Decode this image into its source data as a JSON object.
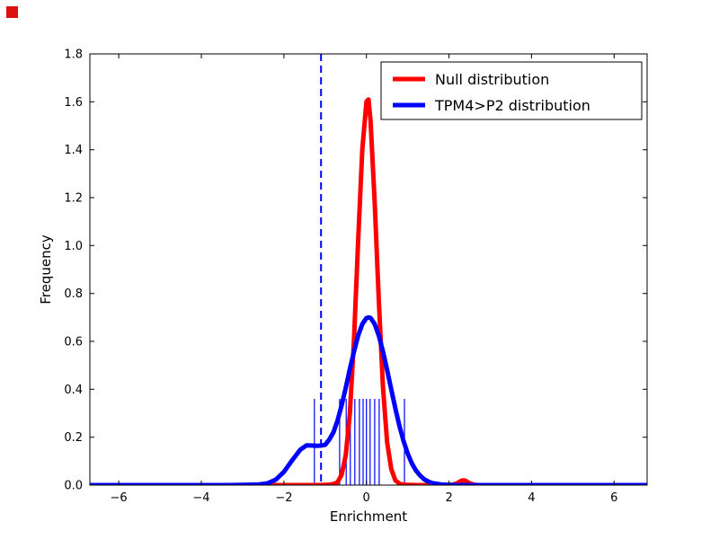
{
  "figure": {
    "background": "#ffffff",
    "corner_marker_color": "#dd1111"
  },
  "chart_data": {
    "type": "line",
    "title": "",
    "xlabel": "Enrichment",
    "ylabel": "Frequency",
    "xlim": [
      -6.7,
      6.8
    ],
    "ylim": [
      0.0,
      1.8
    ],
    "grid": false,
    "xticks": [
      -6,
      -4,
      -2,
      0,
      2,
      4,
      6
    ],
    "xtick_labels": [
      "−6",
      "−4",
      "−2",
      "0",
      "2",
      "4",
      "6"
    ],
    "yticks": [
      0.0,
      0.2,
      0.4,
      0.6,
      0.8,
      1.0,
      1.2,
      1.4,
      1.6,
      1.8
    ],
    "ytick_labels": [
      "0.0",
      "0.2",
      "0.4",
      "0.6",
      "0.8",
      "1.0",
      "1.2",
      "1.4",
      "1.6",
      "1.8"
    ],
    "legend": {
      "position": "upper right",
      "border_color": "#000000",
      "background": "#ffffff"
    },
    "series": [
      {
        "name": "Null distribution",
        "color": "#ff0000",
        "width": 5,
        "points": [
          [
            -6.7,
            0
          ],
          [
            -3.0,
            0
          ],
          [
            -2.0,
            0
          ],
          [
            -1.2,
            0
          ],
          [
            -1.0,
            0.001
          ],
          [
            -0.9,
            0.002
          ],
          [
            -0.8,
            0.004
          ],
          [
            -0.7,
            0.012
          ],
          [
            -0.6,
            0.043
          ],
          [
            -0.5,
            0.125
          ],
          [
            -0.4,
            0.3
          ],
          [
            -0.3,
            0.61
          ],
          [
            -0.2,
            1.02
          ],
          [
            -0.1,
            1.4
          ],
          [
            0.0,
            1.6
          ],
          [
            0.05,
            1.61
          ],
          [
            0.1,
            1.52
          ],
          [
            0.2,
            1.18
          ],
          [
            0.3,
            0.77
          ],
          [
            0.4,
            0.41
          ],
          [
            0.5,
            0.18
          ],
          [
            0.6,
            0.067
          ],
          [
            0.7,
            0.02
          ],
          [
            0.8,
            0.006
          ],
          [
            0.9,
            0.002
          ],
          [
            1.0,
            0.001
          ],
          [
            1.2,
            0
          ],
          [
            2.0,
            0
          ],
          [
            2.1,
            0.002
          ],
          [
            2.2,
            0.008
          ],
          [
            2.3,
            0.018
          ],
          [
            2.35,
            0.02
          ],
          [
            2.4,
            0.018
          ],
          [
            2.5,
            0.008
          ],
          [
            2.6,
            0.002
          ],
          [
            2.7,
            0
          ],
          [
            6.8,
            0
          ]
        ]
      },
      {
        "name": "TPM4>P2 distribution",
        "color": "#0000ff",
        "width": 5,
        "points": [
          [
            -6.7,
            0
          ],
          [
            -3.4,
            0
          ],
          [
            -3.0,
            0.001
          ],
          [
            -2.8,
            0.002
          ],
          [
            -2.6,
            0.003
          ],
          [
            -2.4,
            0.007
          ],
          [
            -2.2,
            0.022
          ],
          [
            -2.0,
            0.055
          ],
          [
            -1.8,
            0.103
          ],
          [
            -1.6,
            0.148
          ],
          [
            -1.45,
            0.166
          ],
          [
            -1.3,
            0.165
          ],
          [
            -1.2,
            0.164
          ],
          [
            -1.1,
            0.165
          ],
          [
            -1.0,
            0.168
          ],
          [
            -0.9,
            0.19
          ],
          [
            -0.8,
            0.22
          ],
          [
            -0.7,
            0.27
          ],
          [
            -0.6,
            0.333
          ],
          [
            -0.5,
            0.406
          ],
          [
            -0.4,
            0.485
          ],
          [
            -0.3,
            0.558
          ],
          [
            -0.2,
            0.624
          ],
          [
            -0.1,
            0.672
          ],
          [
            0.0,
            0.697
          ],
          [
            0.05,
            0.7
          ],
          [
            0.1,
            0.698
          ],
          [
            0.2,
            0.672
          ],
          [
            0.3,
            0.624
          ],
          [
            0.4,
            0.558
          ],
          [
            0.5,
            0.481
          ],
          [
            0.6,
            0.4
          ],
          [
            0.7,
            0.32
          ],
          [
            0.8,
            0.247
          ],
          [
            0.9,
            0.184
          ],
          [
            1.0,
            0.132
          ],
          [
            1.1,
            0.091
          ],
          [
            1.2,
            0.061
          ],
          [
            1.3,
            0.04
          ],
          [
            1.4,
            0.024
          ],
          [
            1.5,
            0.015
          ],
          [
            1.6,
            0.008
          ],
          [
            1.8,
            0.003
          ],
          [
            2.0,
            0.001
          ],
          [
            2.2,
            0
          ],
          [
            6.8,
            0
          ]
        ]
      }
    ],
    "threshold_line": {
      "x": -1.1,
      "color": "#0000ff",
      "style": "dashed"
    },
    "rug_marks": {
      "color": "#0000ff",
      "height": 0.36,
      "x": [
        -1.26,
        -0.65,
        -0.49,
        -0.39,
        -0.28,
        -0.17,
        -0.08,
        0.0,
        0.09,
        0.2,
        0.31,
        0.92
      ]
    }
  }
}
